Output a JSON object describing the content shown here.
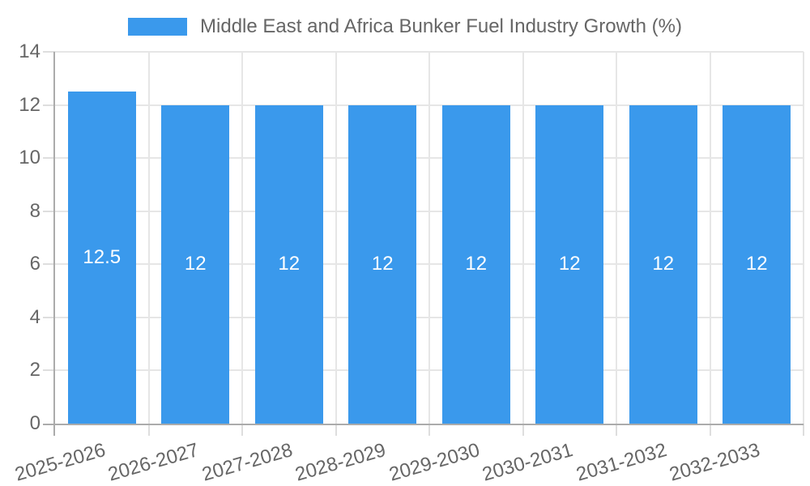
{
  "legend": {
    "label": "Middle East and Africa Bunker Fuel Industry Growth (%)"
  },
  "chart_data": {
    "type": "bar",
    "title": "Middle East and Africa Bunker Fuel Industry Growth (%)",
    "categories": [
      "2025-2026",
      "2026-2027",
      "2027-2028",
      "2028-2029",
      "2029-2030",
      "2030-2031",
      "2031-2032",
      "2032-2033"
    ],
    "values": [
      12.5,
      12,
      12,
      12,
      12,
      12,
      12,
      12
    ],
    "bar_labels": [
      "12.5",
      "12",
      "12",
      "12",
      "12",
      "12",
      "12",
      "12"
    ],
    "xlabel": "",
    "ylabel": "",
    "ylim": [
      0,
      14
    ],
    "yticks": [
      0,
      2,
      4,
      6,
      8,
      10,
      12,
      14
    ],
    "grid": true,
    "legend_position": "top",
    "x_label_rotation_deg": -16,
    "colors": {
      "bar": "#3a99ec",
      "bar_label": "#ffffff",
      "axis_line": "#ababab",
      "gridline": "#e6e6e6",
      "tick": "#dedede",
      "text": "#666666",
      "background": "#ffffff"
    }
  }
}
